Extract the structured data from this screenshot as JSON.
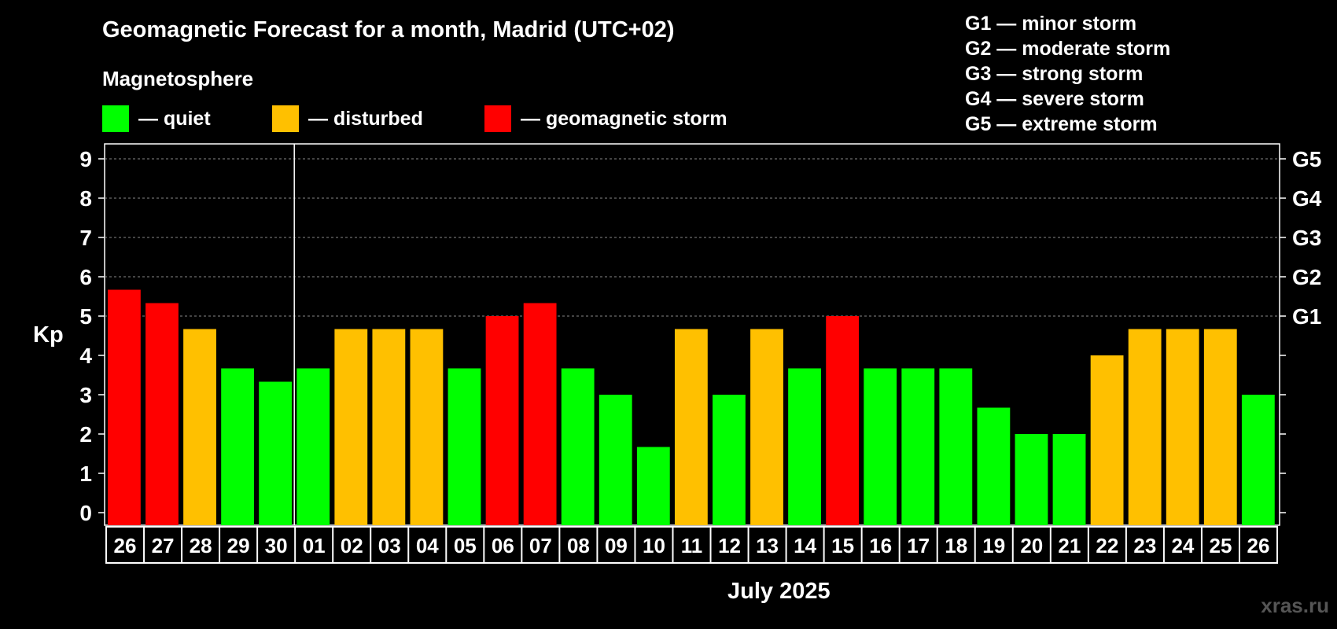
{
  "chart_data": {
    "type": "bar",
    "title": "Geomagnetic Forecast for a month, Madrid (UTC+02)",
    "ylabel": "Kp",
    "xlabel": "July 2025",
    "ylim": [
      0,
      9
    ],
    "yticks": [
      "0",
      "1",
      "2",
      "3",
      "4",
      "5",
      "6",
      "7",
      "8",
      "9"
    ],
    "right_axis_labels": [
      {
        "kp": 5,
        "label": "G1"
      },
      {
        "kp": 6,
        "label": "G2"
      },
      {
        "kp": 7,
        "label": "G3"
      },
      {
        "kp": 8,
        "label": "G4"
      },
      {
        "kp": 9,
        "label": "G5"
      }
    ],
    "categories": [
      "26",
      "27",
      "28",
      "29",
      "30",
      "01",
      "02",
      "03",
      "04",
      "05",
      "06",
      "07",
      "08",
      "09",
      "10",
      "11",
      "12",
      "13",
      "14",
      "15",
      "16",
      "17",
      "18",
      "19",
      "20",
      "21",
      "22",
      "23",
      "24",
      "25",
      "26"
    ],
    "values": [
      5.67,
      5.33,
      4.67,
      3.67,
      3.33,
      3.67,
      4.67,
      4.67,
      4.67,
      3.67,
      5.0,
      5.33,
      3.67,
      3.0,
      1.67,
      4.67,
      3.0,
      4.67,
      3.67,
      5.0,
      3.67,
      3.67,
      3.67,
      2.67,
      2.0,
      2.0,
      4.0,
      4.67,
      4.67,
      4.67,
      3.0
    ],
    "status": [
      "storm",
      "storm",
      "disturbed",
      "quiet",
      "quiet",
      "quiet",
      "disturbed",
      "disturbed",
      "disturbed",
      "quiet",
      "storm",
      "storm",
      "quiet",
      "quiet",
      "quiet",
      "disturbed",
      "quiet",
      "disturbed",
      "quiet",
      "storm",
      "quiet",
      "quiet",
      "quiet",
      "quiet",
      "quiet",
      "quiet",
      "disturbed",
      "disturbed",
      "disturbed",
      "disturbed",
      "quiet"
    ],
    "month_boundary_index": 5,
    "grid": "dashed horizontal at Kp 5-9"
  },
  "colors": {
    "quiet": "#00ff00",
    "disturbed": "#ffc000",
    "storm": "#ff0000",
    "background": "#000000",
    "watermark": "#555555"
  },
  "legend": {
    "title": "Magnetosphere",
    "quiet": "— quiet",
    "disturbed": "— disturbed",
    "storm": "— geomagnetic storm"
  },
  "g_scale": [
    "G1 — minor storm",
    "G2 — moderate storm",
    "G3 — strong storm",
    "G4 — severe storm",
    "G5 — extreme storm"
  ],
  "watermark": "xras.ru"
}
